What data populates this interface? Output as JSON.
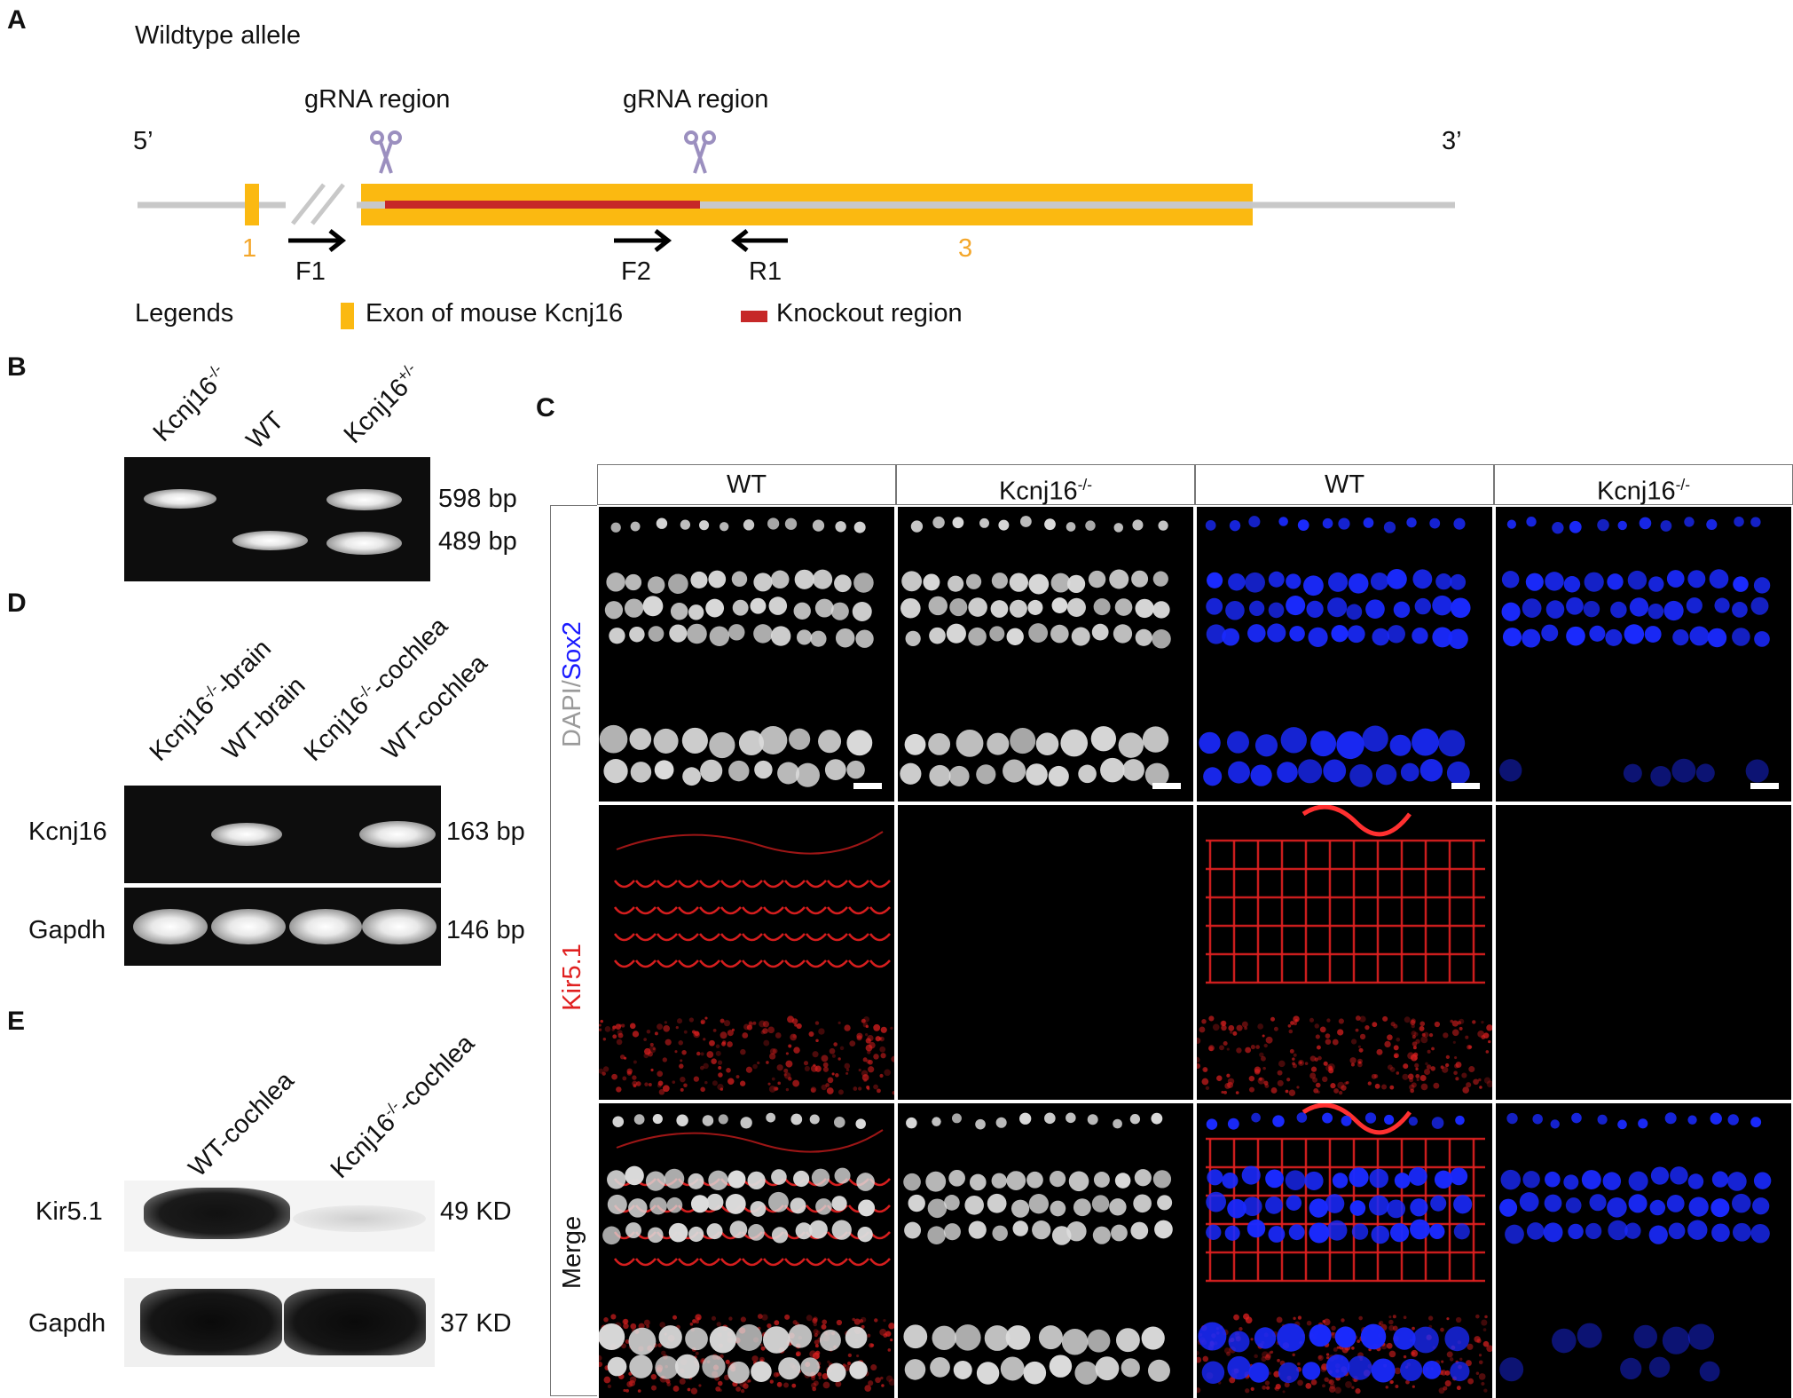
{
  "panels": {
    "a": "A",
    "b": "B",
    "c": "C",
    "d": "D",
    "e": "E"
  },
  "panelA": {
    "title": "Wildtype allele",
    "five_prime": "5’",
    "three_prime": "3’",
    "grna_left": "gRNA region",
    "grna_right": "gRNA region",
    "exon1": "1",
    "exon3": "3",
    "primer_f1": "F1",
    "primer_f2": "F2",
    "primer_r1": "R1",
    "legends_label": "Legends",
    "legend_exon": "Exon of mouse Kcnj16",
    "legend_ko": "Knockout region",
    "colors": {
      "exon": "#fbb911",
      "knockout": "#c62828",
      "line": "#c8c8c8",
      "scissors": "#9b8fbf",
      "exon_label": "#f4a72b"
    }
  },
  "panelB": {
    "lane1_base": "Kcnj16",
    "lane1_sup": "-/-",
    "lane2": "WT",
    "lane3_base": "Kcnj16",
    "lane3_sup": "+/-",
    "size_upper": "598 bp",
    "size_lower": "489 bp"
  },
  "panelD": {
    "lane1_base": "Kcnj16",
    "lane1_sup": "-/-",
    "lane1_tail": "-brain",
    "lane2": "WT-brain",
    "lane3_base": "Kcnj16",
    "lane3_sup": "-/-",
    "lane3_tail": "-cochlea",
    "lane4": "WT-cochlea",
    "row1_label": "Kcnj16",
    "row1_size": "163 bp",
    "row2_label": "Gapdh",
    "row2_size": "146 bp"
  },
  "panelE": {
    "lane1": "WT-cochlea",
    "lane2_base": "Kcnj16",
    "lane2_sup": "-/-",
    "lane2_tail": "-cochlea",
    "row1_label": "Kir5.1",
    "row1_size": "49 KD",
    "row2_label": "Gapdh",
    "row2_size": "37 KD"
  },
  "panelC": {
    "col1": "WT",
    "col2_base": "Kcnj16",
    "col2_sup": "-/-",
    "col3": "WT",
    "col4_base": "Kcnj16",
    "col4_sup": "-/-",
    "row1_a": "DAPI",
    "row1_sep": "/",
    "row1_b": "Sox2",
    "row2": "Kir5.1",
    "row3": "Merge",
    "colors": {
      "dapi": "#9a9a9a",
      "sox2": "#1a1aff",
      "kir": "#e02020"
    }
  }
}
